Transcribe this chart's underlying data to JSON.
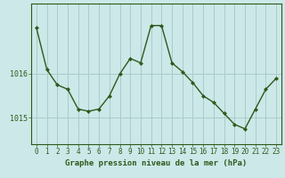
{
  "x": [
    0,
    1,
    2,
    3,
    4,
    5,
    6,
    7,
    8,
    9,
    10,
    11,
    12,
    13,
    14,
    15,
    16,
    17,
    18,
    19,
    20,
    21,
    22,
    23
  ],
  "y": [
    1017.05,
    1016.1,
    1015.75,
    1015.65,
    1015.2,
    1015.15,
    1015.2,
    1015.5,
    1016.0,
    1016.35,
    1016.25,
    1017.1,
    1017.1,
    1016.25,
    1016.05,
    1015.8,
    1015.5,
    1015.35,
    1015.1,
    1014.85,
    1014.75,
    1015.2,
    1015.65,
    1015.9
  ],
  "line_color": "#2d5a1b",
  "marker_color": "#2d5a1b",
  "bg_color": "#cce8e8",
  "grid_color": "#aacccc",
  "xlabel": "Graphe pression niveau de la mer (hPa)",
  "xlabel_color": "#2d5a1b",
  "tick_color": "#2d5a1b",
  "ylim_min": 1014.4,
  "ylim_max": 1017.6,
  "yticks": [
    1015,
    1016
  ],
  "xticks": [
    0,
    1,
    2,
    3,
    4,
    5,
    6,
    7,
    8,
    9,
    10,
    11,
    12,
    13,
    14,
    15,
    16,
    17,
    18,
    19,
    20,
    21,
    22,
    23
  ],
  "tick_fontsize": 5.5,
  "xlabel_fontsize": 6.5
}
